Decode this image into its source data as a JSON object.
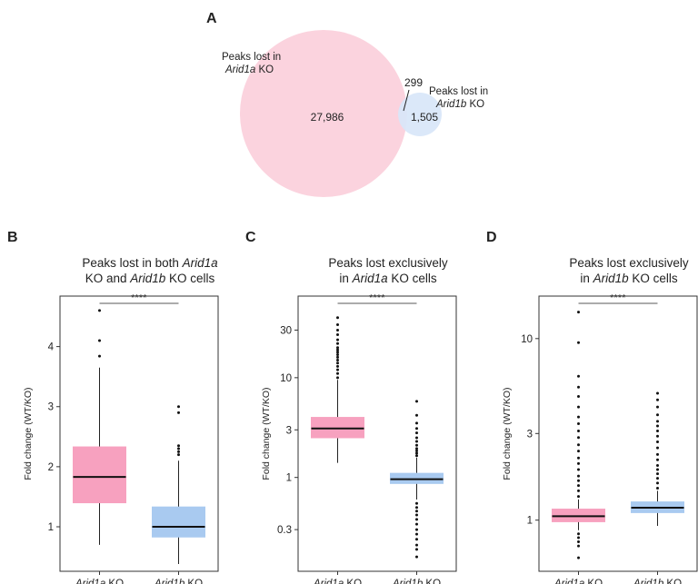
{
  "venn": {
    "letter": "A",
    "left_label_line1": "Peaks lost in",
    "left_label_italic": "Arid1a",
    "left_label_suffix": " KO",
    "right_label_line1": "Peaks lost in",
    "right_label_italic": "Arid1b",
    "right_label_suffix": " KO",
    "left_only": "27,986",
    "overlap": "299",
    "right_only": "1,505",
    "colors": {
      "left": "#fbd3de",
      "right": "#d8e6f8"
    }
  },
  "chart_data": [
    {
      "type": "box",
      "letter": "B",
      "title_parts": [
        [
          {
            "t": "Peaks lost in both "
          },
          {
            "t": "Arid1a",
            "i": true
          }
        ],
        [
          {
            "t": "KO and "
          },
          {
            "t": "Arid1b",
            "i": true
          },
          {
            "t": " KO cells"
          }
        ]
      ],
      "ylabel": "Fold change (WT/KO)",
      "scale": "linear",
      "ylim": [
        0.35,
        4.75
      ],
      "yticks": [
        1,
        2,
        3,
        4
      ],
      "ytick_labels": [
        "1",
        "2",
        "3",
        "4"
      ],
      "significance": "****",
      "groups": [
        {
          "name_italic": "Arid1a",
          "name_suffix": " KO",
          "color": "#f7a1bf",
          "q1": 1.4,
          "median": 1.83,
          "q3": 2.33,
          "whisker_low": 0.7,
          "whisker_high": 3.65,
          "outliers": [
            3.84,
            4.1,
            4.6
          ]
        },
        {
          "name_italic": "Arid1b",
          "name_suffix": " KO",
          "color": "#a9caf0",
          "q1": 0.83,
          "median": 1.0,
          "q3": 1.33,
          "whisker_low": 0.38,
          "whisker_high": 2.1,
          "outliers": [
            2.2,
            2.25,
            2.3,
            2.35,
            2.9,
            3.0
          ]
        }
      ]
    },
    {
      "type": "box",
      "letter": "C",
      "title_parts": [
        [
          {
            "t": "Peaks lost exclusively"
          }
        ],
        [
          {
            "t": "in "
          },
          {
            "t": "Arid1a",
            "i": true
          },
          {
            "t": " KO cells"
          }
        ]
      ],
      "ylabel": "Fold change (WT/KO)",
      "scale": "log",
      "ylim": [
        0.13,
        58
      ],
      "yticks": [
        0.3,
        1,
        3,
        10,
        30
      ],
      "ytick_labels": [
        "0.3",
        "1",
        "3",
        "10",
        "30"
      ],
      "significance": "****",
      "groups": [
        {
          "name_italic": "Arid1a",
          "name_suffix": " KO",
          "color": "#f7a1bf",
          "q1": 2.5,
          "median": 3.1,
          "q3": 4.0,
          "whisker_low": 1.4,
          "whisker_high": 9.5,
          "outliers": [
            10,
            11,
            12,
            13,
            14,
            15,
            16,
            17,
            18,
            19,
            20,
            22,
            24,
            27,
            30,
            34,
            40
          ]
        },
        {
          "name_italic": "Arid1b",
          "name_suffix": " KO",
          "color": "#a9caf0",
          "q1": 0.87,
          "median": 0.96,
          "q3": 1.1,
          "whisker_low": 0.6,
          "whisker_high": 1.58,
          "outliers": [
            1.65,
            1.75,
            1.85,
            1.95,
            2.1,
            2.3,
            2.5,
            2.8,
            3.1,
            3.5,
            4.2,
            5.8,
            0.55,
            0.5,
            0.46,
            0.42,
            0.38,
            0.34,
            0.3,
            0.27,
            0.24,
            0.21,
            0.19,
            0.16
          ]
        }
      ]
    },
    {
      "type": "box",
      "letter": "D",
      "title_parts": [
        [
          {
            "t": "Peaks lost exclusively"
          }
        ],
        [
          {
            "t": "in "
          },
          {
            "t": "Arid1b",
            "i": true
          },
          {
            "t": " KO cells"
          }
        ]
      ],
      "ylabel": "Fold change (WT/KO)",
      "scale": "log",
      "ylim": [
        0.56,
        16
      ],
      "yticks": [
        1,
        3,
        10
      ],
      "ytick_labels": [
        "1",
        "3",
        "10"
      ],
      "significance": "****",
      "groups": [
        {
          "name_italic": "Arid1a",
          "name_suffix": " KO",
          "color": "#f7a1bf",
          "q1": 0.98,
          "median": 1.05,
          "q3": 1.15,
          "whisker_low": 0.88,
          "whisker_high": 1.3,
          "outliers": [
            1.35,
            1.45,
            1.55,
            1.65,
            1.75,
            1.9,
            2.05,
            2.2,
            2.4,
            2.6,
            2.85,
            3.1,
            3.4,
            3.7,
            4.2,
            4.8,
            5.4,
            6.2,
            9.5,
            14,
            0.84,
            0.8,
            0.76,
            0.72,
            0.62
          ]
        },
        {
          "name_italic": "Arid1b",
          "name_suffix": " KO",
          "color": "#a9caf0",
          "q1": 1.1,
          "median": 1.17,
          "q3": 1.26,
          "whisker_low": 0.93,
          "whisker_high": 1.45,
          "outliers": [
            1.5,
            1.6,
            1.7,
            1.8,
            1.9,
            2.0,
            2.15,
            2.3,
            2.5,
            2.7,
            2.9,
            3.1,
            3.3,
            3.5,
            3.8,
            4.2,
            4.6,
            5.0
          ]
        }
      ]
    }
  ]
}
